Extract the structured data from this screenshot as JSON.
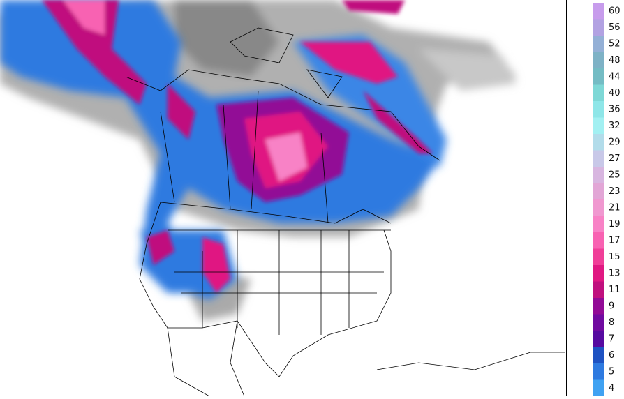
{
  "colorbar": {
    "levels": [
      {
        "label": "60",
        "color": "#c79cec"
      },
      {
        "label": "56",
        "color": "#b2a2e2"
      },
      {
        "label": "52",
        "color": "#94b0d6"
      },
      {
        "label": "48",
        "color": "#7eb2c6"
      },
      {
        "label": "44",
        "color": "#74bcc4"
      },
      {
        "label": "40",
        "color": "#7ed8d6"
      },
      {
        "label": "36",
        "color": "#8ee6e8"
      },
      {
        "label": "32",
        "color": "#a2f0f2"
      },
      {
        "label": "29",
        "color": "#b2dcea"
      },
      {
        "label": "27",
        "color": "#c8c8e8"
      },
      {
        "label": "25",
        "color": "#d8b6e0"
      },
      {
        "label": "23",
        "color": "#e2a6d6"
      },
      {
        "label": "21",
        "color": "#f098d0"
      },
      {
        "label": "19",
        "color": "#f882c6"
      },
      {
        "label": "17",
        "color": "#f862b2"
      },
      {
        "label": "15",
        "color": "#f03e98"
      },
      {
        "label": "13",
        "color": "#e01882"
      },
      {
        "label": "11",
        "color": "#c0107e"
      },
      {
        "label": "9",
        "color": "#920a96"
      },
      {
        "label": "8",
        "color": "#700aa0"
      },
      {
        "label": "7",
        "color": "#560aa0"
      },
      {
        "label": "6",
        "color": "#1e52c2"
      },
      {
        "label": "5",
        "color": "#2e7ae0"
      },
      {
        "label": "4",
        "color": "#40a2f2"
      }
    ]
  }
}
